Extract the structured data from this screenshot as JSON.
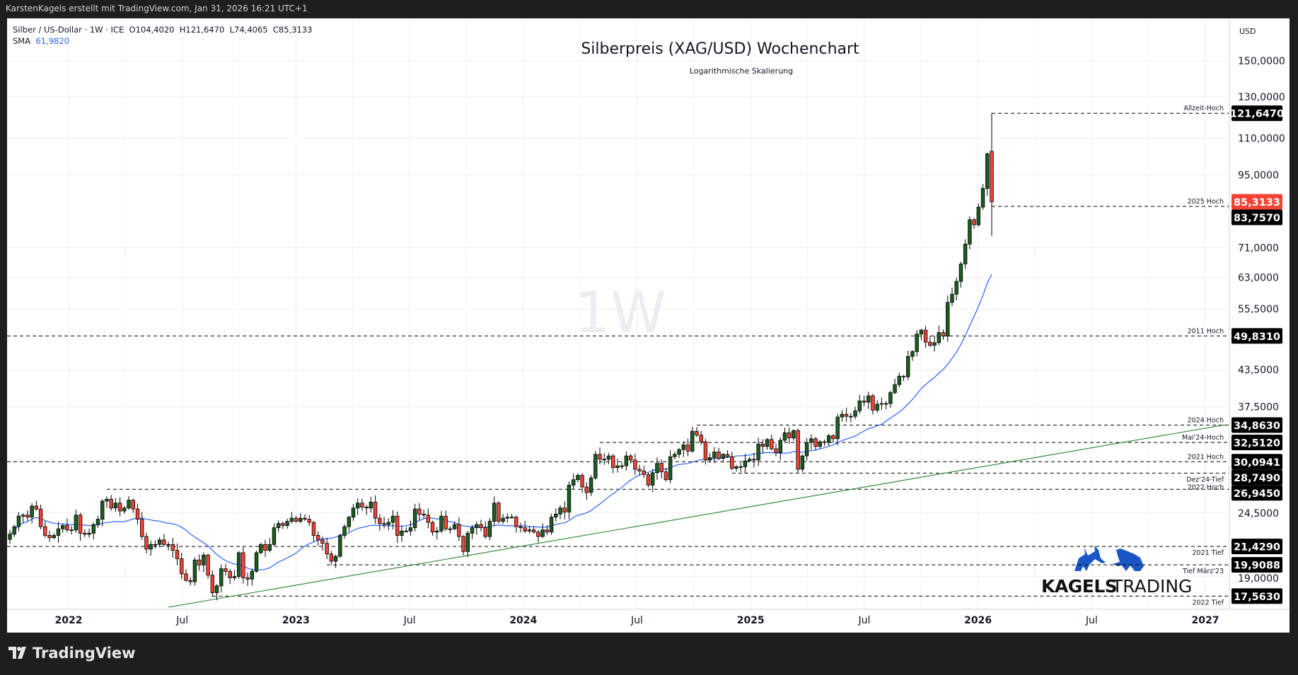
{
  "topbar": {
    "text": "KarstenKagels erstellt mit TradingView.com, Jan 31, 2026 16:21 UTC+1"
  },
  "legend": {
    "symbol": "Silber / US-Dollar · 1W · ICE",
    "open": "O104,4020",
    "high": "H121,6470",
    "low": "L74,4065",
    "close": "C85,3133",
    "sma_label": "SMA",
    "sma_value": "61,9820"
  },
  "watermark": "1W",
  "logo": {
    "word1": "KAGELS",
    "word2": "TRADING",
    "color": "#1a56c4"
  },
  "footer": {
    "brand": "TradingView"
  },
  "colors": {
    "up": "#1b5e20",
    "down": "#f44336",
    "sma": "#2962ff",
    "trend": "#388e3c",
    "last_price": "#f44336"
  },
  "chart_data": {
    "type": "candlestick",
    "title": "Silberpreis (XAG/USD) Wochenchart",
    "subtitle": "Logarithmische Skalierung",
    "scale": "log",
    "currency": "USD",
    "ylim": [
      16.5,
      160
    ],
    "y_ticks": [
      {
        "v": 150,
        "label": "150,0000"
      },
      {
        "v": 130,
        "label": "130,0000"
      },
      {
        "v": 110,
        "label": "110,0000"
      },
      {
        "v": 95,
        "label": "95,0000"
      },
      {
        "v": 71,
        "label": "71,0000"
      },
      {
        "v": 63,
        "label": "63,0000"
      },
      {
        "v": 55.5,
        "label": "55,5000"
      },
      {
        "v": 43.5,
        "label": "43,5000"
      },
      {
        "v": 37.5,
        "label": "37,5000"
      },
      {
        "v": 24.5,
        "label": "24,5000"
      },
      {
        "v": 19,
        "label": "19,0000"
      }
    ],
    "x_labels": [
      {
        "label": "2022",
        "bold": true
      },
      {
        "label": "Jul",
        "bold": false
      },
      {
        "label": "2023",
        "bold": true
      },
      {
        "label": "Jul",
        "bold": false
      },
      {
        "label": "2024",
        "bold": true
      },
      {
        "label": "Jul",
        "bold": false
      },
      {
        "label": "2025",
        "bold": true
      },
      {
        "label": "Jul",
        "bold": false
      },
      {
        "label": "2026",
        "bold": true
      },
      {
        "label": "Jul",
        "bold": false
      },
      {
        "label": "2027",
        "bold": true
      }
    ],
    "weekly_closes": [
      22.5,
      23.2,
      24.2,
      24.3,
      24.1,
      25.2,
      24.9,
      23.2,
      22.4,
      22.2,
      22.4,
      23.0,
      23.3,
      22.9,
      22.9,
      24.3,
      22.6,
      22.5,
      22.6,
      23.4,
      23.9,
      25.7,
      25.9,
      25.0,
      25.5,
      24.7,
      25.0,
      25.8,
      24.9,
      23.9,
      22.3,
      21.2,
      21.6,
      21.6,
      22.0,
      21.6,
      21.6,
      21.1,
      20.4,
      19.2,
      18.7,
      18.6,
      20.3,
      19.9,
      20.7,
      19.1,
      17.8,
      18.3,
      19.6,
      19.4,
      18.9,
      19.0,
      20.9,
      18.9,
      18.8,
      19.4,
      20.9,
      21.6,
      21.1,
      21.6,
      23.1,
      23.5,
      23.3,
      23.7,
      24.0,
      23.7,
      24.0,
      23.9,
      23.6,
      22.4,
      22.0,
      21.7,
      20.8,
      20.2,
      20.6,
      22.4,
      23.2,
      24.1,
      25.0,
      25.5,
      25.1,
      25.0,
      25.6,
      24.0,
      23.5,
      23.4,
      23.6,
      24.2,
      22.4,
      22.8,
      22.8,
      23.1,
      24.9,
      24.4,
      24.3,
      23.6,
      22.7,
      22.8,
      24.2,
      23.0,
      23.0,
      23.4,
      22.3,
      21.0,
      22.6,
      23.1,
      23.4,
      23.1,
      22.3,
      23.7,
      25.5,
      23.7,
      24.0,
      24.1,
      24.1,
      23.2,
      23.1,
      22.8,
      22.9,
      22.7,
      22.3,
      22.9,
      22.7,
      24.1,
      24.4,
      25.0,
      24.6,
      27.4,
      28.0,
      28.5,
      27.2,
      26.6,
      28.2,
      31.0,
      30.4,
      30.4,
      30.8,
      29.4,
      29.6,
      29.6,
      30.8,
      30.3,
      29.2,
      29.0,
      28.6,
      27.4,
      28.8,
      29.9,
      28.9,
      28.0,
      30.7,
      31.0,
      31.6,
      32.2,
      31.4,
      34.0,
      33.5,
      32.6,
      30.3,
      30.6,
      31.3,
      30.5,
      31.0,
      30.7,
      29.3,
      29.5,
      29.5,
      30.2,
      30.4,
      30.3,
      32.3,
      32.0,
      32.9,
      31.7,
      31.2,
      32.8,
      33.8,
      33.1,
      34.1,
      29.2,
      30.8,
      32.5,
      33.0,
      32.0,
      32.6,
      32.5,
      33.4,
      33.0,
      36.0,
      36.4,
      36.1,
      36.1,
      36.9,
      38.4,
      38.2,
      39.2,
      37.0,
      37.9,
      38.0,
      38.0,
      39.7,
      41.0,
      42.4,
      42.3,
      45.9,
      46.8,
      50.2,
      51.0,
      48.6,
      48.0,
      48.5,
      50.5,
      49.8,
      57.0,
      58.9,
      62.0,
      66.5,
      72.0,
      79.4,
      77.8,
      83.5,
      90.0,
      103.4
    ],
    "last_candle": {
      "open": 104.402,
      "high": 121.647,
      "low": 74.4065,
      "close": 85.3133
    },
    "sma": {
      "name": "SMA",
      "period_weeks": 20,
      "last_value": 61.982
    },
    "levels": [
      {
        "label": "Allzeit-Hoch",
        "price": 121.647,
        "price_label": "121,6470",
        "from_week": "last",
        "side": "above"
      },
      {
        "label": "2025 Hoch",
        "price": 83.757,
        "price_label": "83,7570",
        "from_week": "last",
        "side": "above"
      },
      {
        "label": "2011 Hoch",
        "price": 49.831,
        "price_label": "49,8310",
        "from_week": null,
        "side": "above"
      },
      {
        "label": "2024 Hoch",
        "price": 34.863,
        "price_label": "34,8630",
        "from_week": 156,
        "side": "above"
      },
      {
        "label": "Mai'24-Hoch",
        "price": 32.512,
        "price_label": "32,5120",
        "from_week": 134,
        "side": "above"
      },
      {
        "label": "2021 Hoch",
        "price": 30.0941,
        "price_label": "30,0941",
        "from_week": null,
        "side": "above"
      },
      {
        "label": "Dez'24-Tief",
        "price": 28.749,
        "price_label": "28,7490",
        "from_week": 164,
        "side": "below"
      },
      {
        "label": "2022 Hoch",
        "price": 26.945,
        "price_label": "26,9450",
        "from_week": 22,
        "side": "above"
      },
      {
        "label": "2021 Tief",
        "price": 21.429,
        "price_label": "21,4290",
        "from_week": null,
        "side": "below"
      },
      {
        "label": "Tief März'23",
        "price": 19.9088,
        "price_label": "19,9088",
        "from_week": 72,
        "side": "below"
      },
      {
        "label": "2022 Tief",
        "price": 17.563,
        "price_label": "17,5630",
        "from_week": 46,
        "side": "below"
      }
    ],
    "last_price_label": "85,3133",
    "trendline": {
      "points": [
        [
          36,
          16.8
        ],
        [
          276,
          34.9
        ]
      ]
    }
  }
}
